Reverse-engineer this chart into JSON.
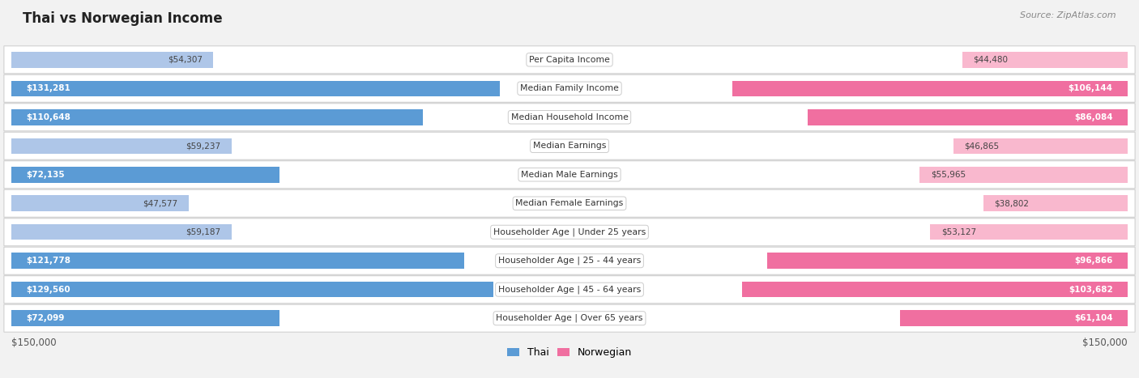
{
  "title": "Thai vs Norwegian Income",
  "source": "Source: ZipAtlas.com",
  "categories": [
    "Per Capita Income",
    "Median Family Income",
    "Median Household Income",
    "Median Earnings",
    "Median Male Earnings",
    "Median Female Earnings",
    "Householder Age | Under 25 years",
    "Householder Age | 25 - 44 years",
    "Householder Age | 45 - 64 years",
    "Householder Age | Over 65 years"
  ],
  "thai_values": [
    54307,
    131281,
    110648,
    59237,
    72135,
    47577,
    59187,
    121778,
    129560,
    72099
  ],
  "norwegian_values": [
    44480,
    106144,
    86084,
    46865,
    55965,
    38802,
    53127,
    96866,
    103682,
    61104
  ],
  "thai_color_light": "#aec6e8",
  "thai_color_solid": "#5b9bd5",
  "norwegian_color_light": "#f9b8ce",
  "norwegian_color_solid": "#f06fa0",
  "thai_label": "Thai",
  "norwegian_label": "Norwegian",
  "max_value": 150000,
  "background_color": "#f2f2f2",
  "row_color_odd": "#ffffff",
  "row_color_even": "#ebebeb",
  "inside_label_threshold": 70000,
  "inside_label_threshold_norw": 60000
}
